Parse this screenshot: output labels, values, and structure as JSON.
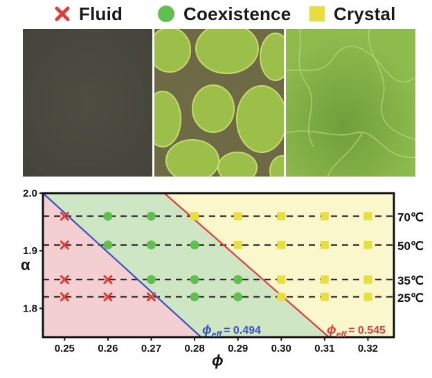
{
  "legend": [
    {
      "label": "Fluid",
      "marker": "x-cross-icon",
      "color": "#e53a35"
    },
    {
      "label": "Coexistence",
      "marker": "green-circle-icon",
      "color": "#5fbf4f"
    },
    {
      "label": "Crystal",
      "marker": "yellow-square-icon",
      "color": "#e8df3f"
    }
  ],
  "micrographs": [
    {
      "phase": "Fluid",
      "base_color": "#4b4a3f"
    },
    {
      "phase": "Coexistence",
      "base_color": "#7f9c3e"
    },
    {
      "phase": "Crystal",
      "base_color": "#8db84a"
    }
  ],
  "chart_data": {
    "type": "scatter",
    "xlabel": "ϕ",
    "ylabel": "α",
    "xlim": [
      0.245,
      0.326
    ],
    "ylim": [
      1.75,
      2.0
    ],
    "xticks": [
      "0.25",
      "0.26",
      "0.27",
      "0.28",
      "0.29",
      "0.30",
      "0.31",
      "0.32"
    ],
    "yticks": [
      "2.0",
      "1.9",
      "1.8"
    ],
    "temperature_lines": [
      {
        "alpha": 1.96,
        "label": "70℃"
      },
      {
        "alpha": 1.91,
        "label": "50℃"
      },
      {
        "alpha": 1.85,
        "label": "35℃"
      },
      {
        "alpha": 1.82,
        "label": "25℃"
      }
    ],
    "boundaries": [
      {
        "label": "ϕ",
        "subscript": "eff",
        "value_text": "= 0.494",
        "color": "#3a4fc0",
        "points": [
          [
            0.245,
            2.0
          ],
          [
            0.2815,
            1.75
          ]
        ]
      },
      {
        "label": "ϕ",
        "subscript": "eff",
        "value_text": "= 0.545",
        "color": "#e03c3c",
        "points": [
          [
            0.273,
            2.0
          ],
          [
            0.311,
            1.75
          ]
        ]
      }
    ],
    "regions": [
      {
        "name": "Fluid",
        "color": "#f4cfd2"
      },
      {
        "name": "Coexistence",
        "color": "#cfe6c4"
      },
      {
        "name": "Crystal",
        "color": "#fbf7cd"
      }
    ],
    "series": [
      {
        "name": "Fluid",
        "marker": "x",
        "color": "#e53a35",
        "points": [
          [
            0.25,
            1.96
          ],
          [
            0.25,
            1.91
          ],
          [
            0.25,
            1.85
          ],
          [
            0.25,
            1.82
          ],
          [
            0.26,
            1.85
          ],
          [
            0.26,
            1.82
          ],
          [
            0.27,
            1.82
          ]
        ]
      },
      {
        "name": "Coexistence",
        "marker": "circle",
        "color": "#5fbf4f",
        "points": [
          [
            0.26,
            1.96
          ],
          [
            0.27,
            1.96
          ],
          [
            0.26,
            1.91
          ],
          [
            0.27,
            1.91
          ],
          [
            0.28,
            1.91
          ],
          [
            0.27,
            1.85
          ],
          [
            0.28,
            1.85
          ],
          [
            0.29,
            1.85
          ],
          [
            0.28,
            1.82
          ],
          [
            0.29,
            1.82
          ]
        ]
      },
      {
        "name": "Crystal",
        "marker": "square",
        "color": "#e8df3f",
        "points": [
          [
            0.28,
            1.96
          ],
          [
            0.29,
            1.96
          ],
          [
            0.3,
            1.96
          ],
          [
            0.31,
            1.96
          ],
          [
            0.32,
            1.96
          ],
          [
            0.29,
            1.91
          ],
          [
            0.3,
            1.91
          ],
          [
            0.31,
            1.91
          ],
          [
            0.32,
            1.91
          ],
          [
            0.3,
            1.85
          ],
          [
            0.31,
            1.85
          ],
          [
            0.32,
            1.85
          ],
          [
            0.3,
            1.82
          ],
          [
            0.31,
            1.82
          ],
          [
            0.32,
            1.82
          ]
        ]
      }
    ]
  }
}
